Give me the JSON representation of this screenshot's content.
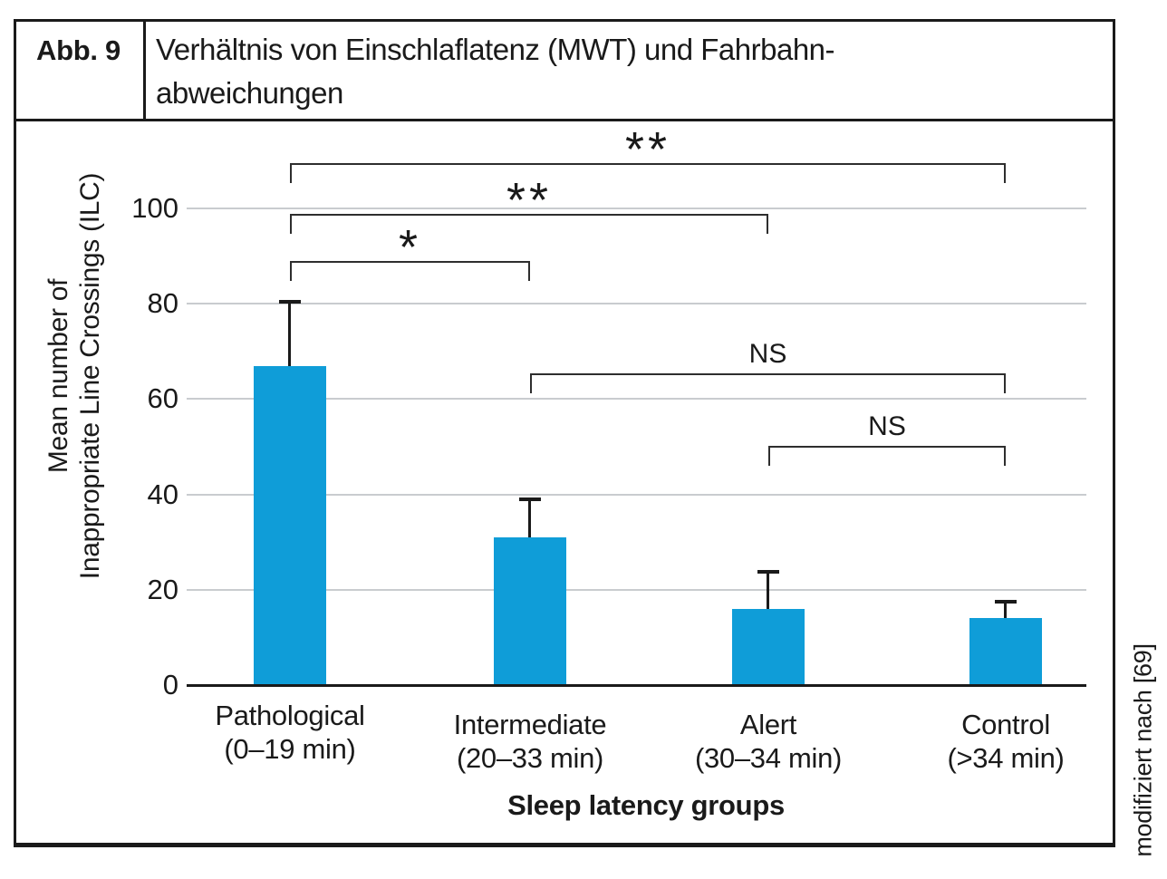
{
  "figure": {
    "label": "Abb. 9",
    "title_lines": [
      "Verhältnis von Einschlaflatenz (MWT) und Fahrbahn-",
      "abweichungen"
    ],
    "source_note": "modifiziert nach [69]"
  },
  "chart_data": {
    "type": "bar",
    "categories": [
      "Pathological",
      "Intermediate",
      "Alert",
      "Control"
    ],
    "category_ranges": [
      "(0–19 min)",
      "(20–33 min)",
      "(30–34 min)",
      "(>34 min)"
    ],
    "values": [
      67,
      31,
      16,
      14
    ],
    "error_upper": [
      13.5,
      8,
      7.8,
      3.5
    ],
    "yticks": [
      0,
      20,
      40,
      60,
      80,
      100
    ],
    "ylim": [
      0,
      100
    ],
    "ylabel_lines": [
      "Mean number of",
      "Inappropriate Line Crossings (ILC)"
    ],
    "xlabel": "Sleep latency groups",
    "grid": true,
    "legend": "none",
    "bar_color": "#0f9dd8",
    "gridline_color": "#c9cccf",
    "significance": [
      {
        "from": 0,
        "to": 3,
        "label": "**"
      },
      {
        "from": 0,
        "to": 2,
        "label": "**"
      },
      {
        "from": 0,
        "to": 1,
        "label": "*"
      },
      {
        "from": 1,
        "to": 3,
        "label": "NS"
      },
      {
        "from": 2,
        "to": 3,
        "label": "NS"
      }
    ]
  }
}
